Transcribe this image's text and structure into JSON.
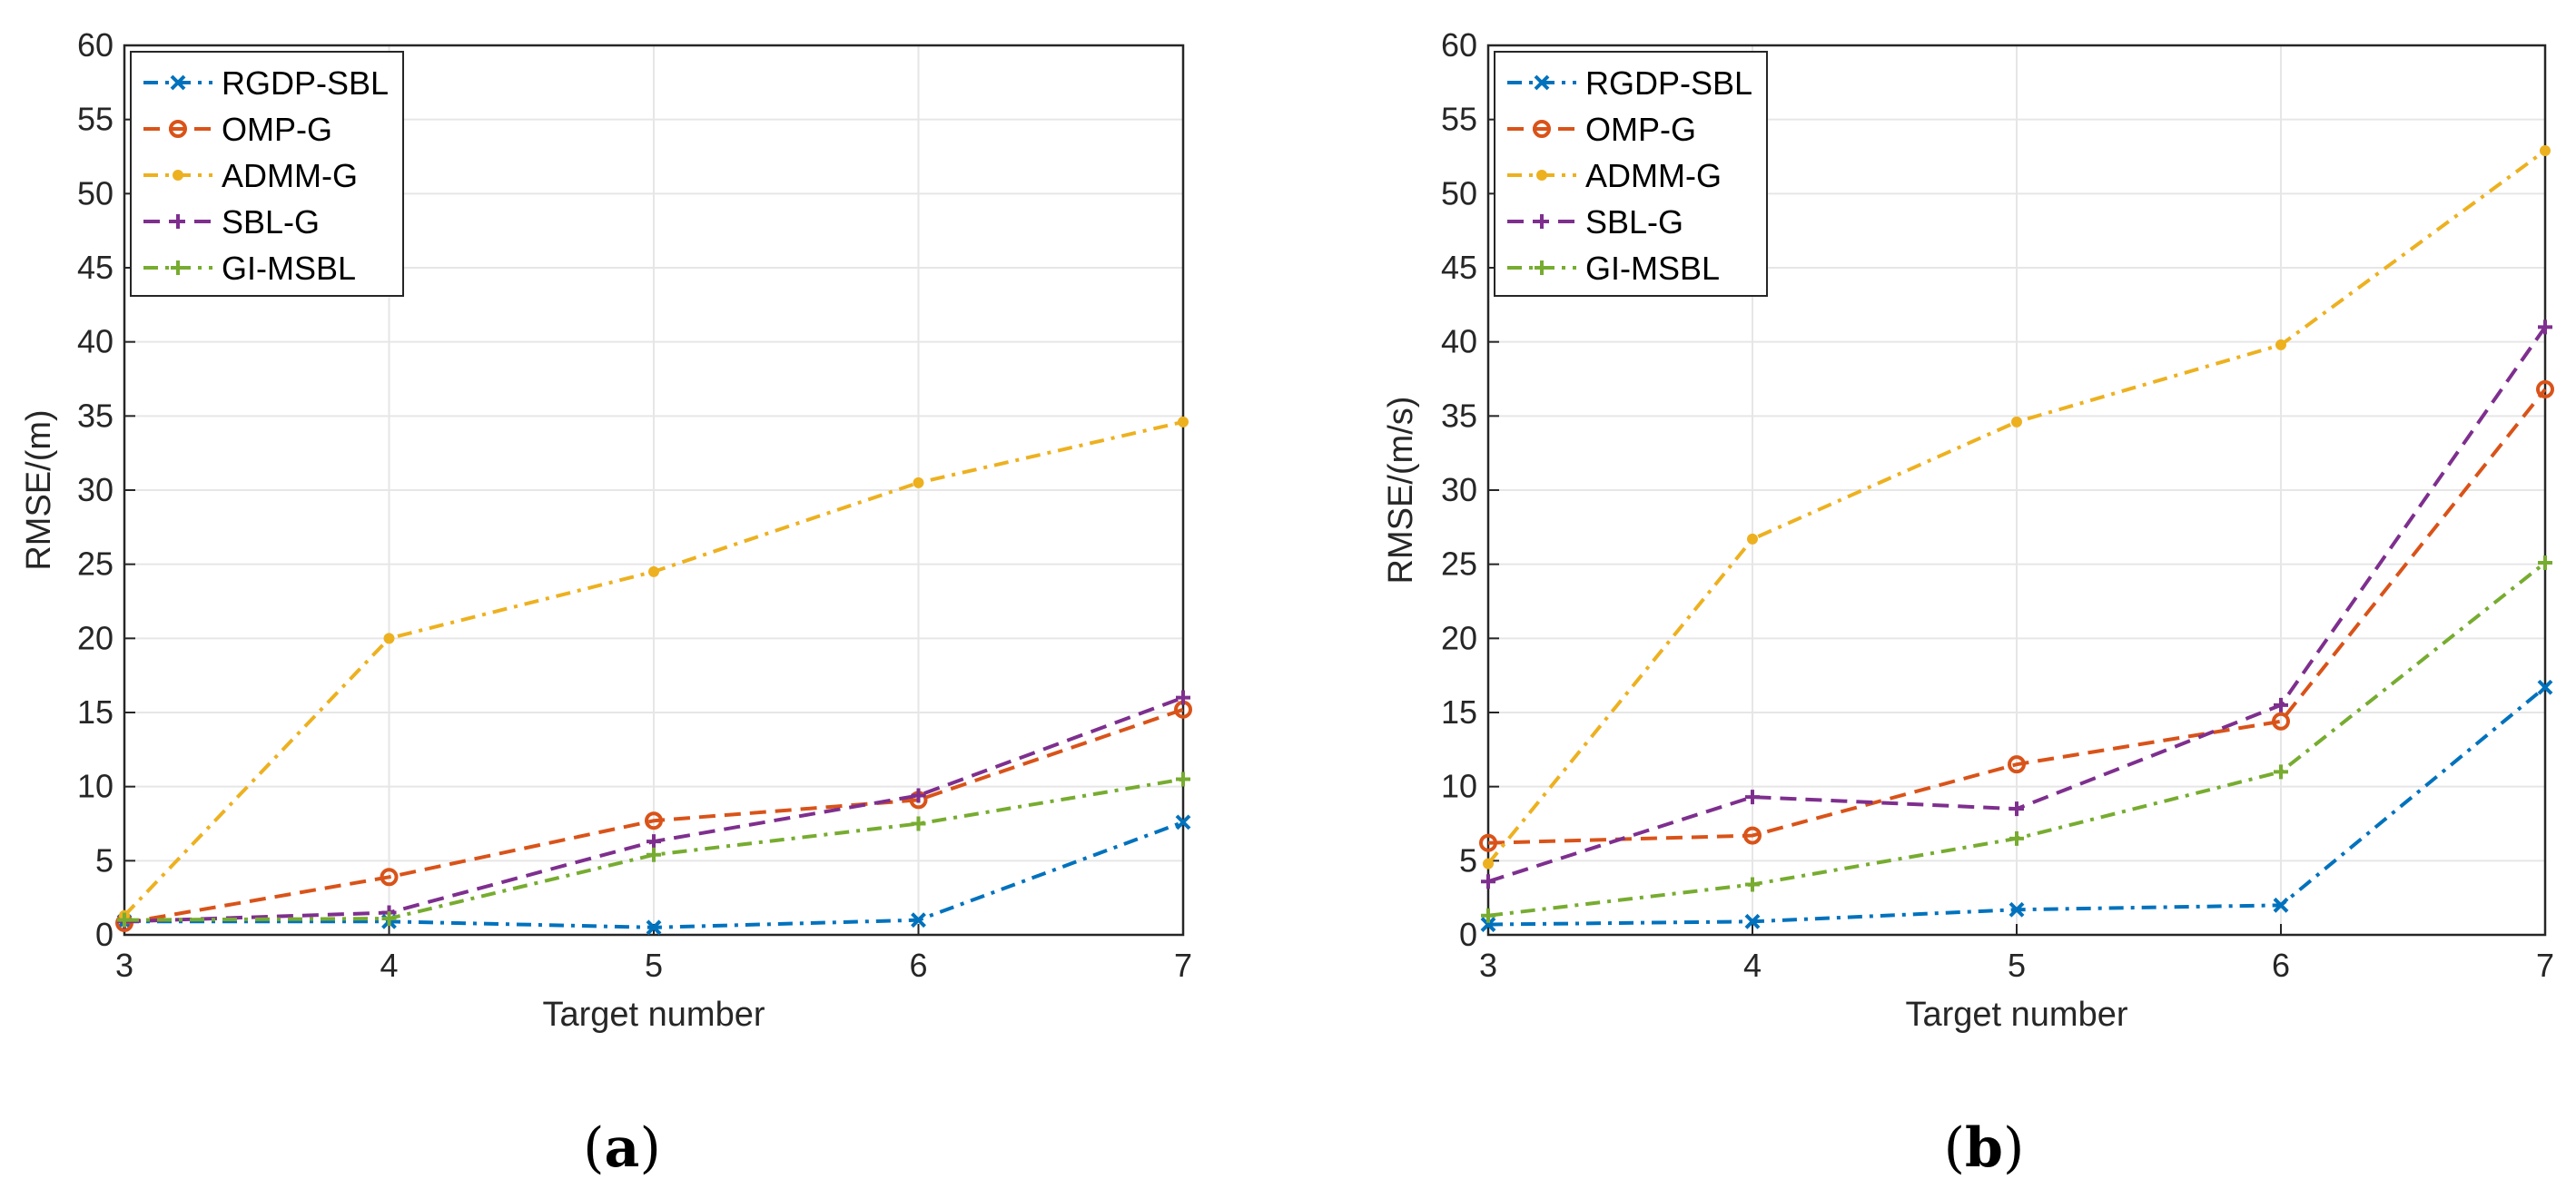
{
  "chart_data": [
    {
      "type": "line",
      "panel_label": "(a)",
      "panel_letter": "a",
      "xlabel": "Target number",
      "ylabel": "RMSE/(m)",
      "xlim": [
        3,
        7
      ],
      "ylim": [
        0,
        60
      ],
      "xticks": [
        3,
        4,
        5,
        6,
        7
      ],
      "yticks": [
        0,
        5,
        10,
        15,
        20,
        25,
        30,
        35,
        40,
        45,
        50,
        55,
        60
      ],
      "grid": true,
      "legend_position": "top-left",
      "x": [
        3,
        4,
        5,
        6,
        7
      ],
      "series": [
        {
          "name": "RGDP-SBL",
          "color": "#0072BD",
          "marker": "x",
          "dash": "dashdot",
          "values": [
            0.9,
            0.9,
            0.5,
            1.0,
            7.6
          ]
        },
        {
          "name": "OMP-G",
          "color": "#D95319",
          "marker": "circle",
          "dash": "dashed",
          "values": [
            0.8,
            3.9,
            7.7,
            9.1,
            15.2
          ]
        },
        {
          "name": "ADMM-G",
          "color": "#EDB120",
          "marker": "dot",
          "dash": "dashdot",
          "values": [
            1.3,
            20.0,
            24.5,
            30.5,
            34.6
          ]
        },
        {
          "name": "SBL-G",
          "color": "#7E2F8E",
          "marker": "plus",
          "dash": "dashed",
          "values": [
            0.9,
            1.5,
            6.3,
            9.4,
            16.0
          ]
        },
        {
          "name": "GI-MSBL",
          "color": "#77AC30",
          "marker": "plus",
          "dash": "dashdot",
          "values": [
            1.0,
            1.1,
            5.4,
            7.5,
            10.5
          ]
        }
      ]
    },
    {
      "type": "line",
      "panel_label": "(b)",
      "panel_letter": "b",
      "xlabel": "Target number",
      "ylabel": "RMSE/(m/s)",
      "xlim": [
        3,
        7
      ],
      "ylim": [
        0,
        60
      ],
      "xticks": [
        3,
        4,
        5,
        6,
        7
      ],
      "yticks": [
        0,
        5,
        10,
        15,
        20,
        25,
        30,
        35,
        40,
        45,
        50,
        55,
        60
      ],
      "grid": true,
      "legend_position": "top-left",
      "x": [
        3,
        4,
        5,
        6,
        7
      ],
      "series": [
        {
          "name": "RGDP-SBL",
          "color": "#0072BD",
          "marker": "x",
          "dash": "dashdot",
          "values": [
            0.7,
            0.9,
            1.7,
            2.0,
            16.7
          ]
        },
        {
          "name": "OMP-G",
          "color": "#D95319",
          "marker": "circle",
          "dash": "dashed",
          "values": [
            6.2,
            6.7,
            11.5,
            14.4,
            36.8
          ]
        },
        {
          "name": "ADMM-G",
          "color": "#EDB120",
          "marker": "dot",
          "dash": "dashdot",
          "values": [
            4.8,
            26.7,
            34.6,
            39.8,
            52.9
          ]
        },
        {
          "name": "SBL-G",
          "color": "#7E2F8E",
          "marker": "plus",
          "dash": "dashed",
          "values": [
            3.6,
            9.3,
            8.5,
            15.5,
            41.0
          ]
        },
        {
          "name": "GI-MSBL",
          "color": "#77AC30",
          "marker": "plus",
          "dash": "dashdot",
          "values": [
            1.3,
            3.4,
            6.5,
            11.0,
            25.1
          ]
        }
      ]
    }
  ]
}
